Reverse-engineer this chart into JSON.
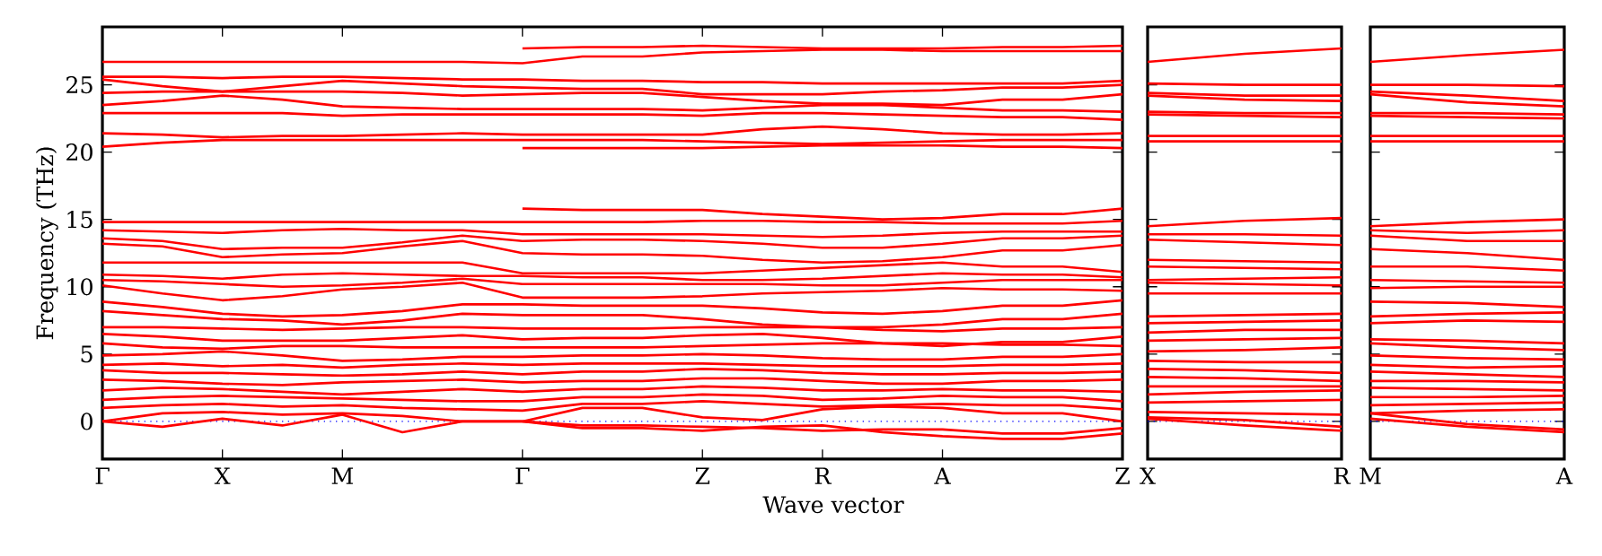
{
  "chart_data": [
    {
      "type": "line",
      "xlabel": "Wave vector",
      "ylabel": "Frequency (THz)",
      "color": "#ff0000",
      "ylim": [
        -2.8,
        29.3
      ],
      "categories": [
        "Γ",
        null,
        "X",
        null,
        "M",
        null,
        null,
        "Γ",
        null,
        null,
        "Z",
        null,
        "R",
        null,
        "A",
        null,
        null,
        "Z"
      ],
      "yticks": [
        0,
        5,
        10,
        15,
        20,
        25
      ],
      "ref_lines": [
        {
          "axis": "y",
          "value": 0,
          "color": "#0000ff",
          "line_style": "dotted"
        }
      ],
      "series": [
        {
          "values": [
            null,
            null,
            null,
            null,
            null,
            null,
            null,
            27.7,
            27.8,
            27.8,
            27.9,
            27.8,
            27.7,
            27.7,
            27.7,
            27.8,
            27.8,
            27.9
          ]
        },
        {
          "values": [
            26.7,
            26.7,
            26.7,
            26.7,
            26.7,
            26.7,
            26.7,
            26.6,
            27.1,
            27.1,
            27.4,
            27.5,
            27.6,
            27.6,
            27.5,
            27.5,
            27.5,
            27.5
          ]
        },
        {
          "values": [
            25.6,
            25.6,
            25.5,
            25.6,
            25.6,
            25.5,
            25.4,
            25.4,
            25.3,
            25.3,
            25.2,
            25.2,
            25.1,
            25.1,
            25.1,
            25.1,
            25.1,
            25.3
          ]
        },
        {
          "values": [
            25.4,
            24.9,
            24.5,
            24.9,
            25.3,
            25.1,
            24.9,
            24.8,
            24.7,
            24.7,
            24.3,
            24.3,
            24.3,
            24.5,
            24.6,
            24.8,
            24.8,
            25.0
          ]
        },
        {
          "values": [
            24.4,
            24.5,
            24.5,
            24.5,
            24.5,
            24.4,
            24.2,
            24.3,
            24.4,
            24.4,
            24.1,
            23.8,
            23.6,
            23.6,
            23.5,
            23.9,
            23.9,
            24.3
          ]
        },
        {
          "values": [
            23.5,
            23.8,
            24.2,
            23.9,
            23.4,
            23.3,
            23.2,
            23.2,
            23.2,
            23.2,
            23.1,
            23.3,
            23.5,
            23.5,
            23.3,
            23.1,
            23.1,
            23.0
          ]
        },
        {
          "values": [
            22.9,
            22.9,
            22.9,
            22.9,
            22.7,
            22.8,
            22.8,
            22.8,
            22.8,
            22.8,
            22.7,
            22.9,
            22.9,
            22.8,
            22.7,
            22.6,
            22.6,
            22.4
          ]
        },
        {
          "values": [
            21.4,
            21.3,
            21.1,
            21.2,
            21.2,
            21.3,
            21.4,
            21.3,
            21.3,
            21.3,
            21.3,
            21.7,
            21.9,
            21.7,
            21.4,
            21.3,
            21.3,
            21.4
          ]
        },
        {
          "values": [
            20.4,
            20.7,
            20.9,
            20.9,
            20.9,
            20.9,
            20.9,
            20.9,
            20.9,
            20.9,
            20.8,
            20.7,
            20.6,
            20.7,
            20.8,
            20.9,
            20.9,
            20.9
          ]
        },
        {
          "values": [
            null,
            null,
            null,
            null,
            null,
            null,
            null,
            20.3,
            20.3,
            20.3,
            20.3,
            20.4,
            20.5,
            20.5,
            20.5,
            20.4,
            20.4,
            20.3
          ]
        },
        {
          "values": [
            null,
            null,
            null,
            null,
            null,
            null,
            null,
            15.8,
            15.7,
            15.7,
            15.7,
            15.4,
            15.2,
            15.0,
            15.1,
            15.4,
            15.4,
            15.8
          ]
        },
        {
          "values": [
            14.8,
            14.8,
            14.8,
            14.8,
            14.8,
            14.8,
            14.8,
            14.8,
            14.8,
            14.8,
            14.9,
            14.9,
            14.8,
            14.8,
            14.7,
            14.7,
            14.7,
            14.9
          ]
        },
        {
          "values": [
            14.2,
            14.1,
            14.0,
            14.2,
            14.3,
            14.2,
            14.2,
            13.9,
            13.9,
            13.9,
            13.9,
            13.8,
            13.7,
            13.8,
            14.0,
            14.1,
            14.1,
            14.1
          ]
        },
        {
          "values": [
            13.6,
            13.4,
            12.8,
            12.9,
            12.9,
            13.3,
            13.8,
            13.4,
            13.5,
            13.5,
            13.4,
            13.2,
            12.9,
            12.9,
            13.2,
            13.6,
            13.6,
            13.8
          ]
        },
        {
          "values": [
            13.2,
            13.0,
            12.2,
            12.4,
            12.5,
            13.0,
            13.4,
            12.5,
            12.4,
            12.4,
            12.3,
            12.0,
            11.8,
            11.9,
            12.2,
            12.7,
            12.7,
            13.1
          ]
        },
        {
          "values": [
            11.8,
            11.8,
            11.8,
            11.8,
            11.8,
            11.8,
            11.8,
            11.0,
            11.0,
            11.0,
            11.0,
            11.2,
            11.4,
            11.6,
            11.8,
            11.5,
            11.5,
            11.1
          ]
        },
        {
          "values": [
            10.9,
            10.8,
            10.6,
            10.9,
            11.0,
            10.9,
            10.8,
            10.8,
            10.7,
            10.7,
            10.5,
            10.5,
            10.6,
            10.8,
            11.0,
            10.9,
            10.9,
            10.7
          ]
        },
        {
          "values": [
            10.5,
            10.4,
            10.2,
            10.0,
            10.1,
            10.3,
            10.6,
            10.2,
            10.2,
            10.2,
            10.2,
            10.2,
            10.1,
            10.1,
            10.3,
            10.5,
            10.5,
            10.5
          ]
        },
        {
          "values": [
            10.1,
            9.5,
            9.0,
            9.3,
            9.8,
            10.0,
            10.3,
            9.2,
            9.2,
            9.2,
            9.3,
            9.5,
            9.6,
            9.7,
            9.9,
            9.8,
            9.8,
            9.7
          ]
        },
        {
          "values": [
            8.9,
            8.5,
            8.0,
            7.8,
            7.9,
            8.2,
            8.7,
            8.7,
            8.6,
            8.6,
            8.6,
            8.4,
            8.1,
            8.0,
            8.2,
            8.6,
            8.6,
            9.0
          ]
        },
        {
          "values": [
            8.2,
            7.9,
            7.6,
            7.5,
            7.2,
            7.5,
            8.0,
            7.9,
            7.9,
            7.9,
            7.6,
            7.2,
            7.0,
            7.0,
            7.2,
            7.6,
            7.6,
            8.0
          ]
        },
        {
          "values": [
            7.0,
            7.0,
            6.9,
            6.8,
            6.9,
            7.0,
            7.0,
            6.9,
            6.9,
            6.9,
            7.0,
            7.0,
            7.0,
            6.8,
            6.7,
            6.9,
            6.9,
            7.0
          ]
        },
        {
          "values": [
            6.5,
            6.3,
            6.0,
            6.0,
            6.0,
            6.2,
            6.4,
            6.1,
            6.2,
            6.2,
            6.4,
            6.5,
            6.2,
            5.8,
            5.6,
            5.9,
            5.9,
            6.3
          ]
        },
        {
          "values": [
            5.8,
            5.5,
            5.4,
            5.6,
            5.6,
            5.5,
            5.5,
            5.5,
            5.5,
            5.5,
            5.6,
            5.7,
            5.8,
            5.8,
            5.8,
            5.7,
            5.7,
            5.6
          ]
        },
        {
          "values": [
            4.9,
            5.0,
            5.2,
            4.9,
            4.5,
            4.6,
            4.8,
            4.8,
            4.9,
            4.9,
            5.0,
            4.9,
            4.7,
            4.6,
            4.6,
            4.8,
            4.8,
            5.0
          ]
        },
        {
          "values": [
            4.2,
            4.3,
            4.1,
            4.2,
            4.0,
            4.2,
            4.3,
            4.2,
            4.3,
            4.3,
            4.3,
            4.2,
            4.1,
            4.1,
            4.1,
            4.2,
            4.2,
            4.3
          ]
        },
        {
          "values": [
            3.8,
            3.6,
            3.6,
            3.5,
            3.4,
            3.5,
            3.7,
            3.5,
            3.7,
            3.7,
            3.9,
            3.8,
            3.6,
            3.5,
            3.5,
            3.6,
            3.6,
            3.7
          ]
        },
        {
          "values": [
            3.1,
            3.0,
            2.8,
            2.7,
            2.9,
            3.0,
            3.1,
            2.9,
            3.0,
            3.0,
            3.2,
            3.2,
            3.0,
            2.8,
            2.8,
            3.0,
            3.0,
            3.1
          ]
        },
        {
          "values": [
            2.3,
            2.5,
            2.4,
            2.2,
            2.0,
            2.2,
            2.4,
            2.2,
            2.4,
            2.4,
            2.6,
            2.5,
            2.3,
            2.3,
            2.4,
            2.3,
            2.3,
            2.2
          ]
        },
        {
          "values": [
            1.6,
            1.8,
            1.9,
            1.8,
            1.7,
            1.6,
            1.5,
            1.5,
            1.8,
            1.8,
            2.0,
            1.9,
            1.6,
            1.7,
            1.9,
            1.8,
            1.8,
            1.5
          ]
        },
        {
          "values": [
            1.0,
            1.2,
            1.3,
            1.1,
            1.2,
            1.0,
            0.9,
            0.8,
            1.3,
            1.3,
            1.5,
            1.3,
            1.1,
            1.2,
            1.3,
            1.2,
            1.2,
            0.9
          ]
        },
        {
          "values": [
            0,
            0.6,
            0.7,
            0.5,
            0.6,
            0.4,
            0,
            0,
            1.0,
            1.0,
            0.3,
            0.1,
            0.9,
            1.1,
            1.0,
            0.6,
            0.6,
            0
          ]
        },
        {
          "values": [
            0,
            -0.4,
            0.2,
            -0.3,
            0.5,
            -0.8,
            0,
            0,
            -0.3,
            -0.3,
            -0.4,
            -0.5,
            -0.7,
            -0.6,
            -0.6,
            -0.9,
            -0.9,
            -0.5
          ]
        },
        {
          "values": [
            null,
            null,
            null,
            null,
            null,
            null,
            null,
            0,
            -0.5,
            -0.5,
            -0.7,
            -0.4,
            -0.3,
            -0.8,
            -1.1,
            -1.3,
            -1.3,
            -0.9
          ]
        }
      ]
    },
    {
      "type": "line",
      "color": "#ff0000",
      "tick_labels": "x",
      "ylim": [
        -2.8,
        29.3
      ],
      "categories": [
        "X",
        null,
        "R"
      ],
      "yticks": [
        0,
        5,
        10,
        15,
        20,
        25
      ],
      "ref_lines": [
        {
          "axis": "y",
          "value": 0,
          "color": "#0000ff",
          "line_style": "dotted"
        }
      ],
      "series": [
        {
          "values": [
            26.7,
            27.3,
            27.7
          ]
        },
        {
          "values": [
            25.1,
            25.0,
            25.0
          ]
        },
        {
          "values": [
            24.4,
            24.2,
            24.2
          ]
        },
        {
          "values": [
            24.2,
            23.9,
            23.8
          ]
        },
        {
          "values": [
            23.0,
            22.9,
            22.9
          ]
        },
        {
          "values": [
            22.8,
            22.7,
            22.6
          ]
        },
        {
          "values": [
            21.2,
            21.2,
            21.2
          ]
        },
        {
          "values": [
            20.8,
            20.8,
            20.8
          ]
        },
        {
          "values": [
            14.5,
            14.9,
            15.1
          ]
        },
        {
          "values": [
            13.9,
            13.9,
            13.8
          ]
        },
        {
          "values": [
            13.5,
            13.3,
            13.1
          ]
        },
        {
          "values": [
            12.0,
            11.9,
            11.8
          ]
        },
        {
          "values": [
            11.5,
            11.4,
            11.3
          ]
        },
        {
          "values": [
            10.5,
            10.6,
            10.7
          ]
        },
        {
          "values": [
            10.3,
            10.2,
            10.1
          ]
        },
        {
          "values": [
            9.5,
            9.5,
            9.5
          ]
        },
        {
          "values": [
            7.8,
            7.9,
            8.0
          ]
        },
        {
          "values": [
            7.3,
            7.4,
            7.5
          ]
        },
        {
          "values": [
            6.6,
            6.8,
            6.8
          ]
        },
        {
          "values": [
            6.0,
            6.1,
            6.2
          ]
        },
        {
          "values": [
            5.2,
            5.3,
            5.5
          ]
        },
        {
          "values": [
            4.5,
            4.4,
            4.4
          ]
        },
        {
          "values": [
            3.9,
            3.8,
            3.6
          ]
        },
        {
          "values": [
            3.3,
            3.2,
            3.0
          ]
        },
        {
          "values": [
            2.6,
            2.6,
            2.6
          ]
        },
        {
          "values": [
            2.0,
            2.2,
            2.3
          ]
        },
        {
          "values": [
            1.4,
            1.5,
            1.6
          ]
        },
        {
          "values": [
            0.7,
            0.6,
            0.5
          ]
        },
        {
          "values": [
            0.3,
            0.1,
            -0.4
          ]
        },
        {
          "values": [
            0.2,
            -0.3,
            -0.7
          ]
        }
      ]
    },
    {
      "type": "line",
      "color": "#ff0000",
      "tick_labels": "x",
      "ylim": [
        -2.8,
        29.3
      ],
      "categories": [
        "M",
        null,
        "A"
      ],
      "yticks": [
        0,
        5,
        10,
        15,
        20,
        25
      ],
      "ref_lines": [
        {
          "axis": "y",
          "value": 0,
          "color": "#0000ff",
          "line_style": "dotted"
        }
      ],
      "series": [
        {
          "values": [
            26.7,
            27.2,
            27.6
          ]
        },
        {
          "values": [
            25.0,
            25.0,
            24.9
          ]
        },
        {
          "values": [
            24.5,
            24.2,
            23.8
          ]
        },
        {
          "values": [
            24.3,
            23.7,
            23.4
          ]
        },
        {
          "values": [
            22.9,
            22.9,
            22.8
          ]
        },
        {
          "values": [
            22.7,
            22.6,
            22.5
          ]
        },
        {
          "values": [
            21.2,
            21.2,
            21.2
          ]
        },
        {
          "values": [
            20.8,
            20.8,
            20.8
          ]
        },
        {
          "values": [
            14.5,
            14.8,
            15.0
          ]
        },
        {
          "values": [
            14.2,
            14.0,
            14.2
          ]
        },
        {
          "values": [
            13.8,
            13.4,
            13.4
          ]
        },
        {
          "values": [
            12.8,
            12.5,
            12.0
          ]
        },
        {
          "values": [
            11.5,
            11.5,
            11.2
          ]
        },
        {
          "values": [
            10.5,
            10.4,
            10.3
          ]
        },
        {
          "values": [
            9.9,
            10.0,
            10.0
          ]
        },
        {
          "values": [
            8.9,
            8.8,
            8.5
          ]
        },
        {
          "values": [
            7.8,
            8.0,
            8.1
          ]
        },
        {
          "values": [
            7.3,
            7.5,
            7.4
          ]
        },
        {
          "values": [
            6.1,
            6.0,
            5.8
          ]
        },
        {
          "values": [
            5.8,
            5.5,
            5.3
          ]
        },
        {
          "values": [
            4.9,
            4.7,
            4.6
          ]
        },
        {
          "values": [
            4.2,
            4.0,
            4.1
          ]
        },
        {
          "values": [
            3.7,
            3.5,
            3.3
          ]
        },
        {
          "values": [
            3.0,
            3.0,
            2.9
          ]
        },
        {
          "values": [
            2.5,
            2.4,
            2.3
          ]
        },
        {
          "values": [
            1.8,
            1.8,
            1.9
          ]
        },
        {
          "values": [
            1.2,
            1.3,
            1.4
          ]
        },
        {
          "values": [
            0.6,
            0.8,
            0.9
          ]
        },
        {
          "values": [
            0.6,
            -0.2,
            -0.6
          ]
        },
        {
          "values": [
            0.2,
            -0.4,
            -0.8
          ]
        }
      ]
    }
  ]
}
